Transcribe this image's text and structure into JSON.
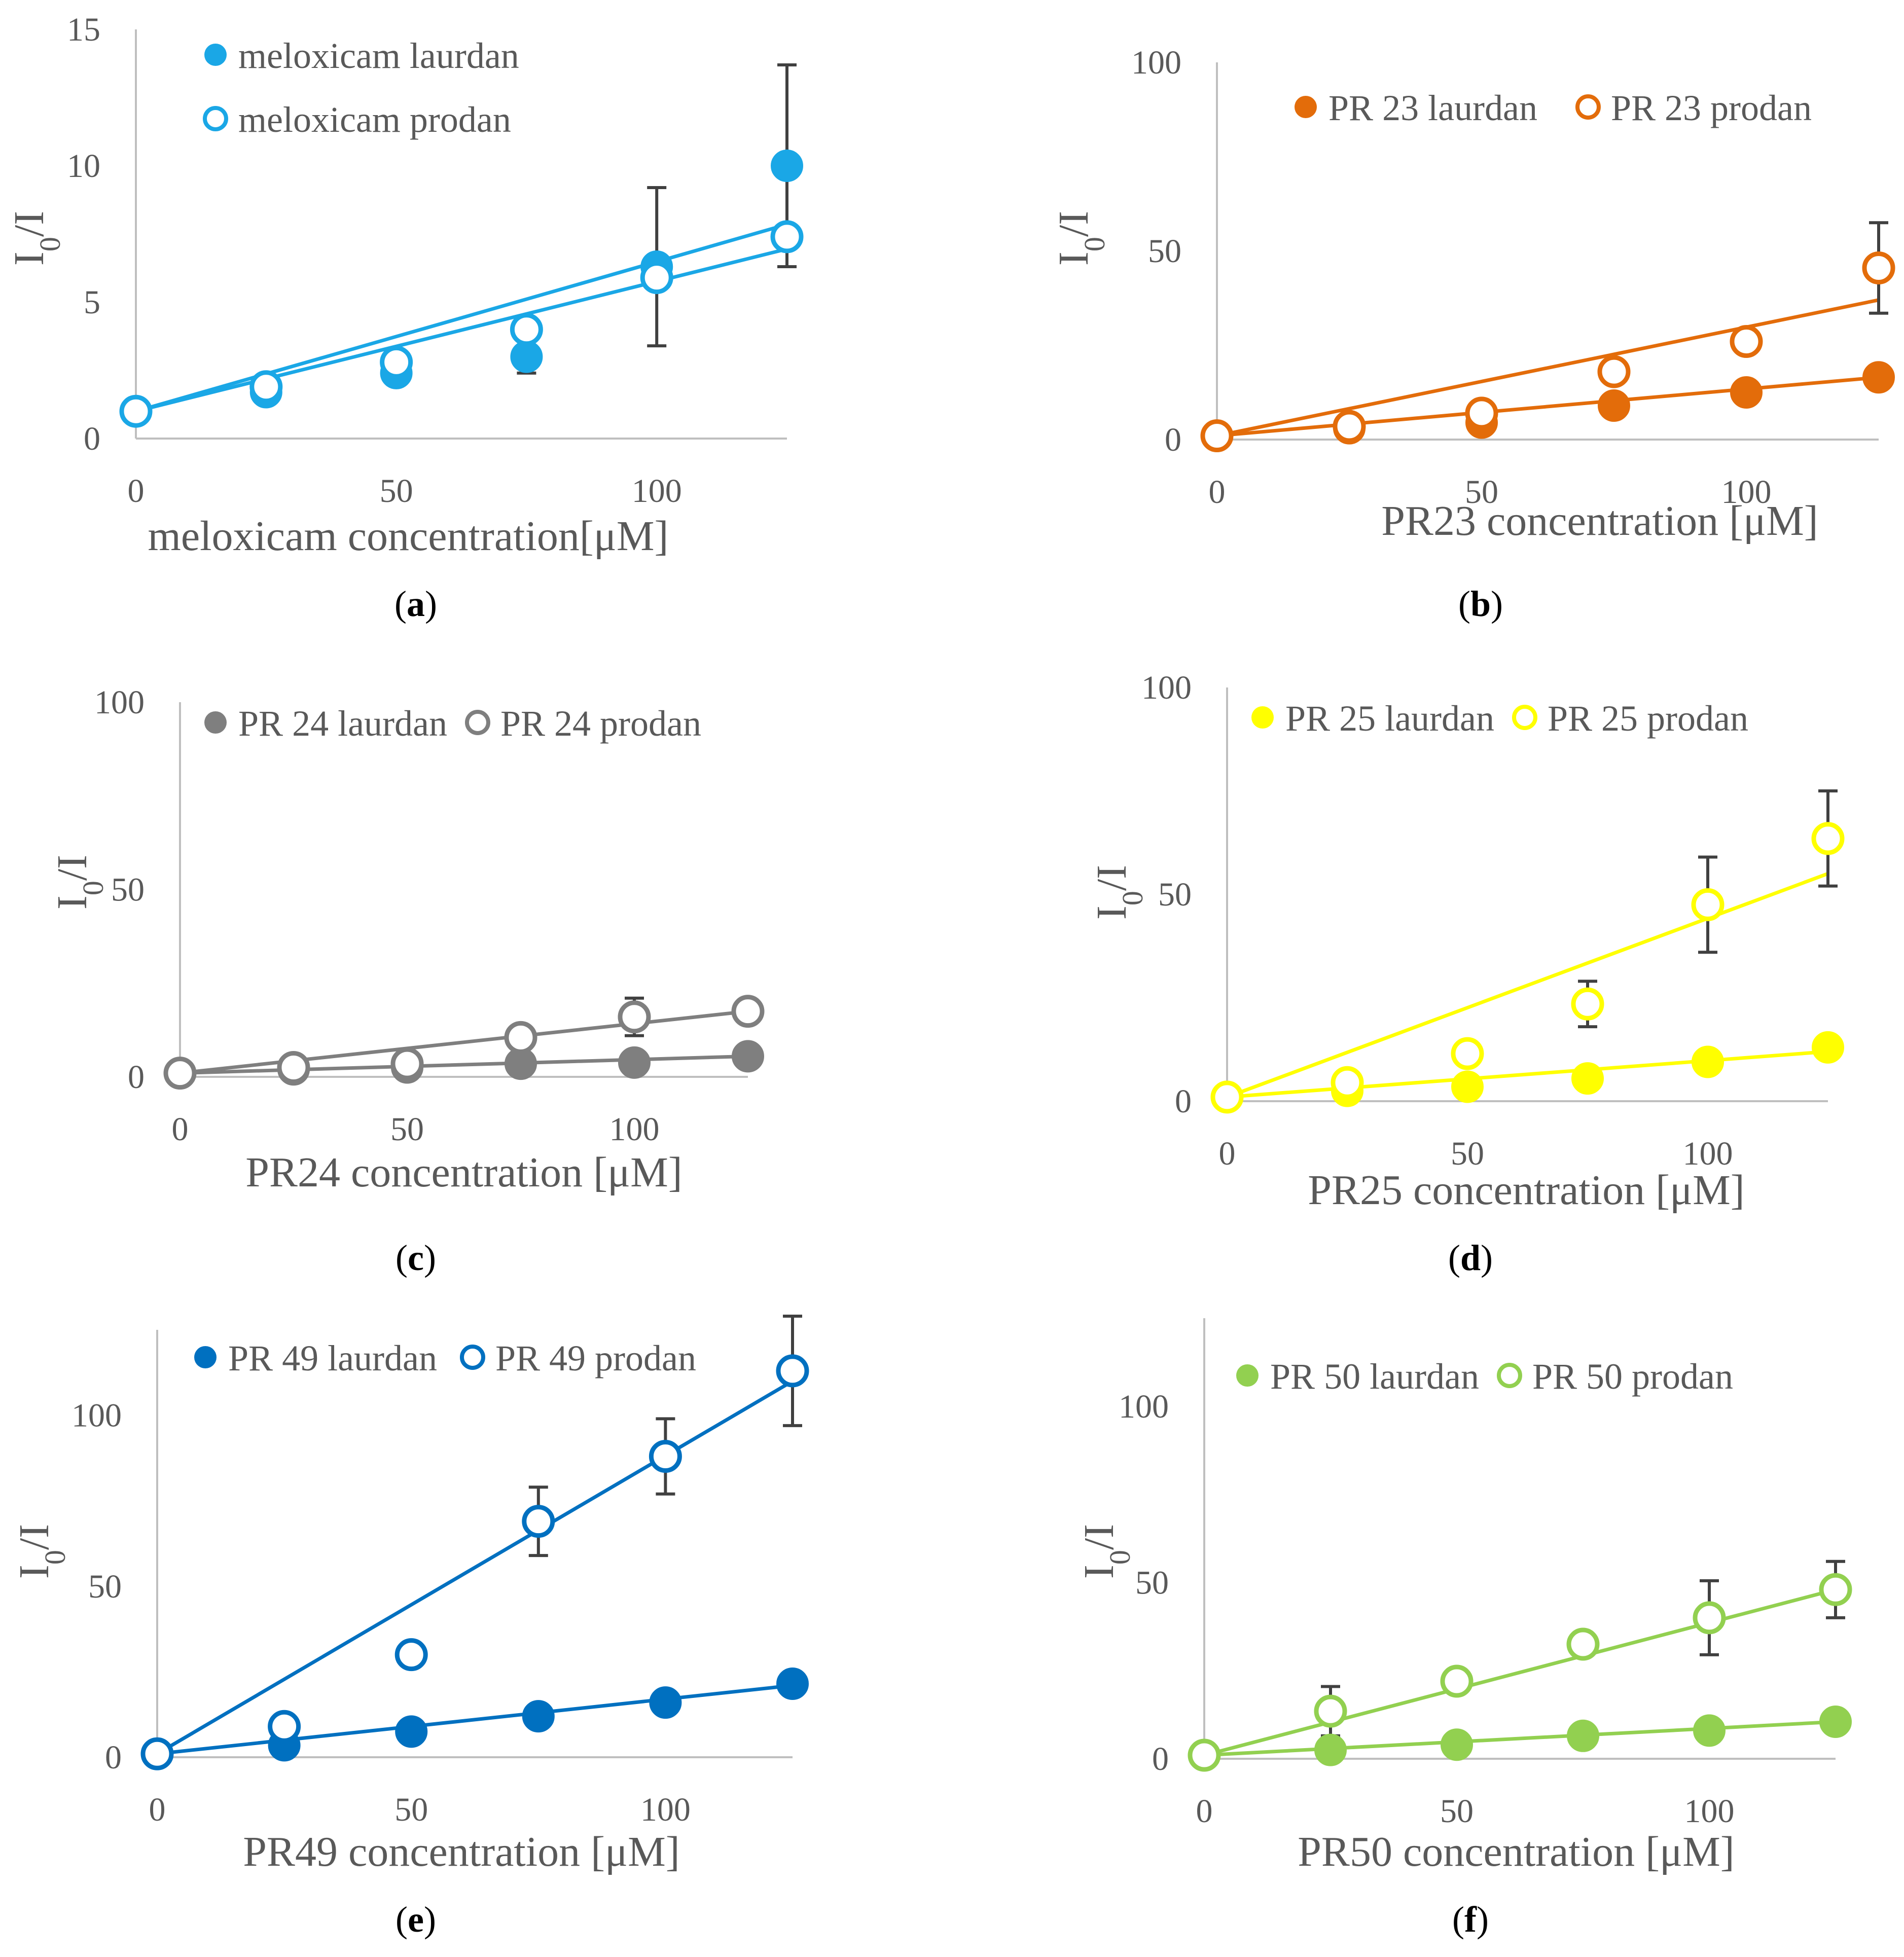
{
  "chart_data": [
    {
      "type": "scatter",
      "panel": "(a)",
      "panel_letter": "a",
      "xlabel": "meloxicam concentration[μM]",
      "ylabel": "I0/I",
      "ylim": [
        0,
        15
      ],
      "xlim": [
        0,
        125
      ],
      "yticks": [
        0,
        5,
        10,
        15
      ],
      "xticks": [
        0,
        50,
        100
      ],
      "legend_position": "top-left",
      "legend_layout": "stacked",
      "color": "#1AA7E6",
      "series": [
        {
          "name": "meloxicam laurdan",
          "filled": true,
          "x": [
            0,
            25,
            50,
            75,
            100,
            125
          ],
          "y": [
            1,
            1.7,
            2.4,
            3.0,
            6.3,
            10.0
          ],
          "errors": [
            null,
            null,
            null,
            0.6,
            2.9,
            3.7
          ],
          "fit": [
            [
              0,
              1
            ],
            [
              125,
              7.85
            ]
          ]
        },
        {
          "name": "meloxicam prodan",
          "filled": false,
          "x": [
            0,
            25,
            50,
            75,
            100,
            125
          ],
          "y": [
            1,
            1.9,
            2.8,
            4.0,
            5.9,
            7.4
          ],
          "errors": [
            null,
            null,
            null,
            null,
            null,
            null
          ],
          "fit": [
            [
              0,
              1
            ],
            [
              125,
              6.95
            ]
          ]
        }
      ]
    },
    {
      "type": "scatter",
      "panel": "(b)",
      "panel_letter": "b",
      "xlabel": "PR23 concentration [μM]",
      "ylabel": "I0/I",
      "ylim": [
        0,
        100
      ],
      "xlim": [
        0,
        125
      ],
      "yticks": [
        0,
        50,
        100
      ],
      "xticks": [
        0,
        50,
        100
      ],
      "legend_position": "top",
      "legend_layout": "row",
      "color": "#E36C0A",
      "series": [
        {
          "name": "PR 23 laurdan",
          "filled": true,
          "x": [
            0,
            25,
            50,
            75,
            100,
            125
          ],
          "y": [
            1,
            3,
            4.5,
            9,
            12.5,
            16.5
          ],
          "errors": [
            null,
            null,
            null,
            null,
            null,
            null
          ],
          "fit": [
            [
              0,
              1
            ],
            [
              125,
              16.5
            ]
          ]
        },
        {
          "name": "PR 23 prodan",
          "filled": false,
          "x": [
            0,
            25,
            50,
            75,
            100,
            125
          ],
          "y": [
            1,
            3.5,
            7,
            18,
            26,
            45.5
          ],
          "errors": [
            null,
            null,
            null,
            null,
            null,
            12
          ],
          "fit": [
            [
              0,
              1
            ],
            [
              125,
              37
            ]
          ]
        }
      ]
    },
    {
      "type": "scatter",
      "panel": "(c)",
      "panel_letter": "c",
      "xlabel": "PR24 concentration [μM]",
      "ylabel": "I0/I",
      "ylim": [
        0,
        100
      ],
      "xlim": [
        0,
        125
      ],
      "yticks": [
        0,
        50,
        100
      ],
      "xticks": [
        0,
        50,
        100
      ],
      "legend_position": "top",
      "legend_layout": "row",
      "color": "#7F7F7F",
      "series": [
        {
          "name": "PR 24 laurdan",
          "filled": true,
          "x": [
            0,
            25,
            50,
            75,
            100,
            125
          ],
          "y": [
            1,
            2,
            2.5,
            3.5,
            3.8,
            5.5
          ],
          "errors": [
            null,
            null,
            null,
            null,
            null,
            null
          ],
          "fit": [
            [
              0,
              1
            ],
            [
              125,
              5.5
            ]
          ]
        },
        {
          "name": "PR 24 prodan",
          "filled": false,
          "x": [
            0,
            25,
            50,
            75,
            100,
            125
          ],
          "y": [
            1,
            2.5,
            3.5,
            10.5,
            16,
            17.5
          ],
          "errors": [
            null,
            null,
            null,
            null,
            5,
            null
          ],
          "fit": [
            [
              0,
              1
            ],
            [
              125,
              17.5
            ]
          ]
        }
      ]
    },
    {
      "type": "scatter",
      "panel": "(d)",
      "panel_letter": "d",
      "xlabel": "PR25 concentration [μM]",
      "ylabel": "I0/I",
      "ylim": [
        0,
        100
      ],
      "xlim": [
        0,
        125
      ],
      "yticks": [
        0,
        50,
        100
      ],
      "xticks": [
        0,
        50,
        100
      ],
      "legend_position": "top",
      "legend_layout": "row",
      "color": "#FFFF00",
      "series": [
        {
          "name": "PR 25 laurdan",
          "filled": true,
          "x": [
            0,
            25,
            50,
            75,
            100,
            125
          ],
          "y": [
            1,
            2.5,
            3.5,
            5.5,
            9.5,
            13
          ],
          "errors": [
            null,
            null,
            null,
            null,
            null,
            null
          ],
          "fit": [
            [
              0,
              1
            ],
            [
              125,
              12
            ]
          ]
        },
        {
          "name": "PR 25 prodan",
          "filled": false,
          "x": [
            0,
            25,
            50,
            75,
            100,
            125
          ],
          "y": [
            1,
            4.5,
            11.5,
            23.5,
            47.5,
            63.5
          ],
          "errors": [
            null,
            null,
            null,
            5.5,
            11.5,
            11.5
          ],
          "fit": [
            [
              0,
              1
            ],
            [
              125,
              55
            ]
          ]
        }
      ]
    },
    {
      "type": "scatter",
      "panel": "(e)",
      "panel_letter": "e",
      "xlabel": "PR49 concentration [μM]",
      "ylabel": "I0/I",
      "ylim": [
        0,
        125
      ],
      "xlim": [
        0,
        125
      ],
      "yticks": [
        0,
        50,
        100
      ],
      "xticks": [
        0,
        50,
        100
      ],
      "legend_position": "top",
      "legend_layout": "row",
      "color": "#0070C0",
      "series": [
        {
          "name": "PR 49 laurdan",
          "filled": true,
          "x": [
            0,
            25,
            50,
            75,
            100,
            125
          ],
          "y": [
            1,
            3.5,
            7.5,
            12,
            16,
            21.5
          ],
          "errors": [
            null,
            null,
            null,
            null,
            null,
            null
          ],
          "fit": [
            [
              0,
              1
            ],
            [
              125,
              21
            ]
          ]
        },
        {
          "name": "PR 49 prodan",
          "filled": false,
          "x": [
            0,
            25,
            50,
            75,
            100,
            125
          ],
          "y": [
            1,
            9,
            30,
            69,
            88,
            113
          ],
          "errors": [
            null,
            null,
            null,
            10,
            11,
            16
          ],
          "fit": [
            [
              0,
              1
            ],
            [
              125,
              110
            ]
          ]
        }
      ]
    },
    {
      "type": "scatter",
      "panel": "(f)",
      "panel_letter": "f",
      "xlabel": "PR50 concentration [μM]",
      "ylabel": "I0/I",
      "ylim": [
        0,
        125
      ],
      "xlim": [
        0,
        125
      ],
      "yticks": [
        0,
        50,
        100
      ],
      "xticks": [
        0,
        50,
        100
      ],
      "legend_position": "top",
      "legend_layout": "row",
      "color": "#92D050",
      "series": [
        {
          "name": "PR 50 laurdan",
          "filled": true,
          "x": [
            0,
            25,
            50,
            75,
            100,
            125
          ],
          "y": [
            1,
            2.5,
            4,
            6.5,
            8,
            10.5
          ],
          "errors": [
            null,
            null,
            null,
            null,
            null,
            null
          ],
          "fit": [
            [
              0,
              1
            ],
            [
              125,
              10.5
            ]
          ]
        },
        {
          "name": "PR 50 prodan",
          "filled": false,
          "x": [
            0,
            25,
            50,
            75,
            100,
            125
          ],
          "y": [
            1,
            13.5,
            22,
            32.5,
            40,
            48
          ],
          "errors": [
            null,
            7,
            null,
            null,
            10.5,
            8
          ],
          "fit": [
            [
              0,
              1
            ],
            [
              125,
              48
            ]
          ]
        }
      ]
    }
  ]
}
